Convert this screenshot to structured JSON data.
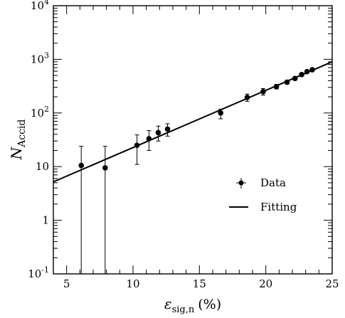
{
  "chart_data": {
    "type": "scatter",
    "xlabel": {
      "main": "ε",
      "sub": "sig,n",
      "unit": "(%)"
    },
    "ylabel": {
      "main": "N",
      "sub": "Accid"
    },
    "xlim": [
      4,
      25
    ],
    "ylim": [
      0.1,
      10000
    ],
    "yscale": "log",
    "x_ticks": [
      5,
      10,
      15,
      20,
      25
    ],
    "x_tick_labels": [
      "5",
      "10",
      "15",
      "20",
      "25"
    ],
    "y_ticks": [
      0.1,
      1,
      10,
      100,
      1000,
      10000
    ],
    "y_tick_labels": [
      {
        "base": "10",
        "exp": "-1"
      },
      {
        "base": "1",
        "exp": ""
      },
      {
        "base": "10",
        "exp": ""
      },
      {
        "base": "10",
        "exp": "2"
      },
      {
        "base": "10",
        "exp": "3"
      },
      {
        "base": "10",
        "exp": "4"
      }
    ],
    "series": [
      {
        "name": "Data",
        "kind": "points_with_errors",
        "x": [
          6.1,
          7.9,
          10.3,
          11.2,
          11.9,
          12.6,
          16.6,
          18.6,
          19.8,
          20.8,
          21.6,
          22.2,
          22.7,
          23.1,
          23.5
        ],
        "y": [
          10.5,
          9.5,
          25,
          33,
          43,
          50,
          100,
          195,
          250,
          310,
          375,
          440,
          520,
          590,
          640
        ],
        "y_low": [
          0.1,
          0.1,
          11,
          20,
          30,
          37,
          78,
          165,
          215,
          280,
          345,
          410,
          490,
          560,
          610
        ],
        "y_high": [
          24,
          24,
          39,
          47,
          57,
          63,
          118,
          225,
          285,
          340,
          405,
          470,
          550,
          620,
          670
        ]
      },
      {
        "name": "Fitting",
        "kind": "line",
        "x": [
          4,
          25
        ],
        "y": [
          5.2,
          900
        ]
      }
    ],
    "legend": {
      "position": "right-middle",
      "entries": [
        "Data",
        "Fitting"
      ]
    },
    "grid": false,
    "colors": {
      "data": "#000000",
      "fit": "#000000",
      "axes": "#000000"
    }
  }
}
